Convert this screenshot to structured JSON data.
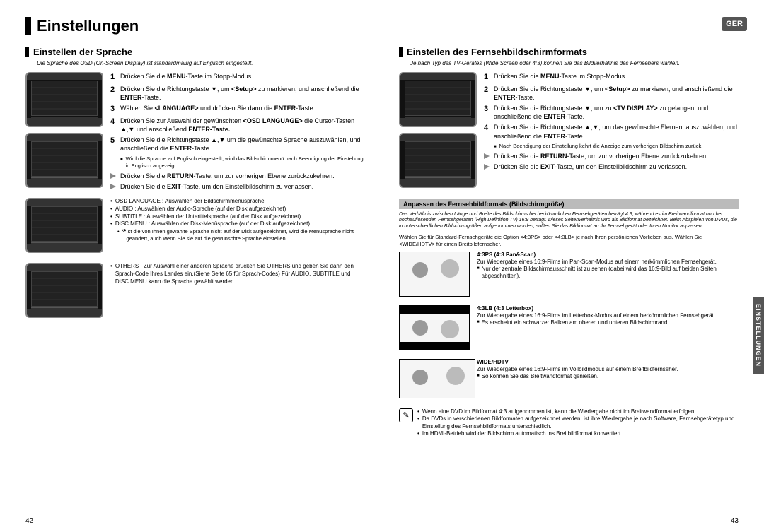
{
  "lang_badge": "GER",
  "side_tab": "EINSTELLUNGEN",
  "page_title": "Einstellungen",
  "page_left_num": "42",
  "page_right_num": "43",
  "left": {
    "section": "Einstellen der Sprache",
    "intro": "Die Sprache des OSD (On-Screen Display) ist standardmäßig auf Englisch eingestellt.",
    "steps": [
      {
        "n": "1",
        "t": "Drücken Sie die <b>MENU</b>-Taste im Stopp-Modus."
      },
      {
        "n": "2",
        "t": "Drücken Sie die Richtungstaste ▼, um <b>&lt;Setup&gt;</b> zu markieren, und anschließend die <b>ENTER</b>-Taste."
      },
      {
        "n": "3",
        "t": "Wählen Sie <b>&lt;LANGUAGE&gt;</b> und drücken Sie dann die <b>ENTER</b>-Taste."
      },
      {
        "n": "4",
        "t": "Drücken Sie zur Auswahl der gewünschten <b>&lt;OSD LANGUAGE&gt;</b> die Cursor-Tasten ▲,▼ und anschließend <b>ENTER-Taste.</b>"
      },
      {
        "n": "5",
        "t": "Drücken Sie die Richtungstaste ▲,▼ um die gewünschte Sprache auszuwählen, und anschließend die <b>ENTER</b>-Taste."
      }
    ],
    "step5_note": "Wird die Sprache auf Englisch eingestellt, wird das Bildschirmmenü nach Beendigung der Einstellung in Englisch angezeigt.",
    "returns": [
      "Drücken Sie die <b>RETURN</b>-Taste, um zur vorherigen Ebene zurückzukehren.",
      "Drücken Sie die <b>EXIT</b>-Taste, um den Einstellbildschirm zu verlassen."
    ],
    "bullets1": [
      "OSD LANGUAGE : Auswählen der Bildschirmmenüsprache",
      "AUDIO : Auswählen der Audio-Sprache (auf der Disk aufgezeichnet)",
      "SUBTITLE : Auswählen der Untertitelsprache (auf der Disk aufgezeichnet)",
      "DISC MENU : Auswählen der Disk-Menüsprache (auf der Disk aufgezeichnet)"
    ],
    "bullets1_note": "Ist die von Ihnen gewählte Sprache nicht auf der Disk aufgezeichnet, wird die Menüsprache nicht geändert, auch wenn Sie sie auf die gewünschte Sprache einstellen.",
    "bullets2": [
      "OTHERS : Zur Auswahl einer anderen Sprache drücken Sie OTHERS und geben Sie dann den Sprach-Code Ihres Landes ein.(Siehe Seite 65 für Sprach-Codes) Für AUDIO, SUBTITLE und DISC MENU kann die Sprache gewählt werden."
    ]
  },
  "right": {
    "section": "Einstellen des Fernsehbildschirmformats",
    "intro": "Je nach Typ des TV-Gerätes (Wide Screen oder 4:3) können Sie das Bildverhältnis des Fernsehers wählen.",
    "steps": [
      {
        "n": "1",
        "t": "Drücken Sie die <b>MENU</b>-Taste im Stopp-Modus."
      },
      {
        "n": "2",
        "t": "Drücken Sie die Richtungstaste ▼, um <b>&lt;Setup&gt;</b> zu markieren, und anschließend die <b>ENTER</b>-Taste."
      },
      {
        "n": "3",
        "t": "Drücken Sie die Richtungstaste ▼, um zu <b>&lt;TV DISPLAY&gt;</b> zu gelangen, und anschließend die <b>ENTER</b>-Taste."
      },
      {
        "n": "4",
        "t": "Drücken Sie die Richtungstaste ▲,▼, um das gewünschte Element auszuwählen, und anschließend die <b>ENTER</b>-Taste."
      }
    ],
    "step4_note": "Nach Beendigung der Einstellung kehrt die Anzeige zum vorherigen Bildschirm zurück.",
    "returns": [
      "Drücken Sie die <b>RETURN</b>-Taste, um zur vorherigen Ebene zurückzukehren.",
      "Drücken Sie die <b>EXIT</b>-Taste, um den Einstellbildschirm zu verlassen."
    ],
    "band": "Anpassen des Fernsehbildformats (Bildschirmgröße)",
    "fine": "Das Verhältnis zwischen Länge und Breite des Bildschirms bei herkömmlichen Fernsehgeräten beträgt 4:3, während es im Breitwandformat und bei hochauflösenden Fernsehgeräten (High Definition TV) 16:9 beträgt. Dieses Seitenverhältnis wird als Bildformat bezeichnet. Beim Abspielen von DVDs, die in unterschiedlichen Bildschirmgrößen aufgenommen wurden, sollten Sie das Bildformat an Ihr Fernsehgerät oder Ihren Monitor anpassen.",
    "fine2": "Wählen Sie für Standard-Fernsehgeräte die Option <4:3PS> oder <4:3LB> je nach Ihren persönlichen Vorlieben aus. Wählen Sie <WIDE/HDTV> für einen Breitbildfernseher.",
    "formats": [
      {
        "title": "4:3PS (4:3 Pan&Scan)",
        "l1": "Zur Wiedergabe eines 16:9-Films im Pan-Scan-Modus auf einem herkömmlichen Fernsehgerät.",
        "l2": "Nur der zentrale Bildschirmausschnitt ist zu sehen (dabei wird das 16:9-Bild auf beiden Seiten abgeschnitten)."
      },
      {
        "title": "4:3LB (4:3 Letterbox)",
        "l1": "Zur Wiedergabe eines 16:9-Films im Letterbox-Modus auf einem herkömmlichen Fernsehgerät.",
        "l2": "Es erscheint ein schwarzer Balken am oberen und unteren Bildschirmrand."
      },
      {
        "title": "WIDE/HDTV",
        "l1": "Zur Wiedergabe eines 16:9-Films im Vollbildmodus auf einem Breitbildfernseher.",
        "l2": "So können Sie das Breitwandformat genießen."
      }
    ],
    "note_icon": "✎",
    "notes": [
      "Wenn eine DVD im Bildformat 4:3 aufgenommen ist, kann die Wiedergabe nicht im Breitwandformat erfolgen.",
      "Da DVDs in verschiedenen Bildformaten aufgezeichnet werden, ist ihre Wiedergabe je nach Software, Fernsehgerätetyp und Einstellung des Fernsehbildformats unterschiedlich.",
      "Im HDMI-Betrieb wird der Bildschirm automatisch ins Breitbildformat konvertiert."
    ]
  }
}
